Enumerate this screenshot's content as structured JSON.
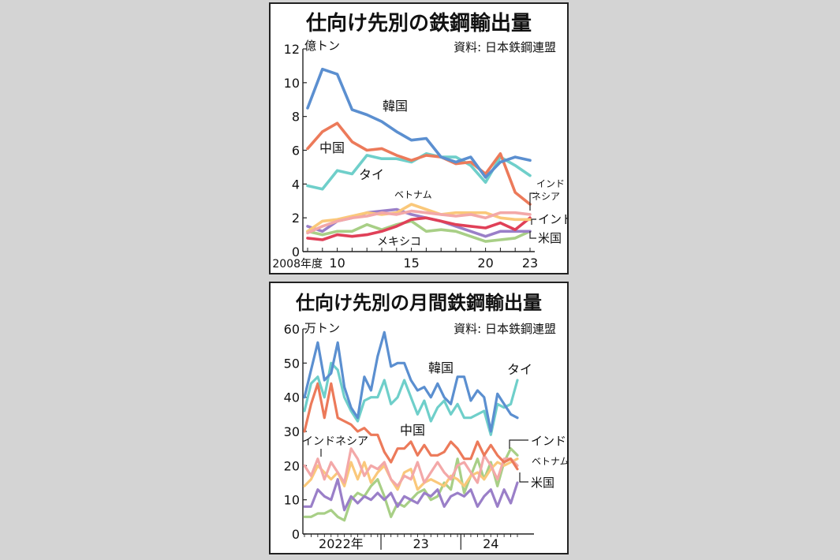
{
  "chart_data": [
    {
      "type": "line",
      "title": "仕向け先別の鉄鋼輸出量",
      "source": "資料: 日本鉄鋼連盟",
      "unit": "億トン",
      "ylim": [
        0,
        12
      ],
      "y_ticks": [
        "0",
        "2",
        "4",
        "6",
        "8",
        "10",
        "12"
      ],
      "x_ticks": [
        "2008年度",
        "10",
        "15",
        "20",
        "23"
      ],
      "x": [
        2008,
        2009,
        2010,
        2011,
        2012,
        2013,
        2014,
        2015,
        2016,
        2017,
        2018,
        2019,
        2020,
        2021,
        2022,
        2023
      ],
      "series": [
        {
          "name": "韓国",
          "color": "#5b8fd0",
          "values": [
            8.5,
            10.8,
            10.5,
            8.4,
            8.1,
            7.7,
            7.1,
            6.6,
            6.7,
            5.6,
            5.3,
            5.6,
            4.4,
            5.3,
            5.6,
            5.4
          ]
        },
        {
          "name": "中国",
          "color": "#ec7a5a",
          "values": [
            6.1,
            7.1,
            7.6,
            6.5,
            6.0,
            6.1,
            5.7,
            5.4,
            5.7,
            5.6,
            5.2,
            5.3,
            4.6,
            5.8,
            3.5,
            2.8
          ]
        },
        {
          "name": "タイ",
          "color": "#6fcfca",
          "values": [
            3.9,
            3.7,
            4.8,
            4.6,
            5.7,
            5.5,
            5.5,
            5.3,
            5.8,
            5.6,
            5.6,
            5.1,
            4.1,
            5.6,
            5.1,
            4.5
          ]
        },
        {
          "name": "インドネシア",
          "color": "#f3a8a8",
          "values": [
            1.1,
            1.5,
            1.8,
            2.0,
            2.1,
            2.3,
            2.2,
            2.4,
            2.3,
            2.2,
            2.1,
            2.2,
            2.0,
            2.3,
            2.3,
            2.2
          ]
        },
        {
          "name": "ベトナム",
          "color": "#fac87a",
          "values": [
            1.2,
            1.8,
            1.9,
            2.1,
            2.3,
            2.2,
            2.3,
            2.8,
            2.5,
            2.2,
            2.3,
            2.3,
            2.3,
            2.0,
            1.9,
            1.9
          ]
        },
        {
          "name": "インド",
          "color": "#e04058",
          "values": [
            0.8,
            0.7,
            1.0,
            0.9,
            1.0,
            1.2,
            1.5,
            1.9,
            2.0,
            1.8,
            1.6,
            1.5,
            1.4,
            1.7,
            1.3,
            2.0
          ]
        },
        {
          "name": "米国",
          "color": "#9a7fc8",
          "values": [
            1.5,
            1.2,
            1.8,
            2.0,
            2.3,
            2.4,
            2.5,
            2.2,
            2.0,
            1.8,
            1.5,
            1.2,
            0.9,
            1.2,
            1.2,
            1.2
          ]
        },
        {
          "name": "メキシコ",
          "color": "#a8cf86",
          "values": [
            1.2,
            1.0,
            1.2,
            1.2,
            1.6,
            1.3,
            1.6,
            1.8,
            1.2,
            1.3,
            1.2,
            0.9,
            0.6,
            0.7,
            0.8,
            1.2
          ]
        }
      ],
      "labels": {
        "korea": "韓国",
        "china": "中国",
        "thai": "タイ",
        "vietnam": "ベトナム",
        "mexico": "メキシコ",
        "indonesia_1": "インド",
        "indonesia_2": "ネシア",
        "india": "インド",
        "us": "米国"
      },
      "legend": "direct labels",
      "grid": false
    },
    {
      "type": "line",
      "title": "仕向け先別の月間鉄鋼輸出量",
      "source": "資料: 日本鉄鋼連盟",
      "unit": "万トン",
      "ylim": [
        0,
        60
      ],
      "y_ticks": [
        "0",
        "10",
        "20",
        "30",
        "40",
        "50",
        "60"
      ],
      "x_ticks": [
        "2022年",
        "23",
        "24"
      ],
      "x": [
        "2022-01",
        "2022-02",
        "2022-03",
        "2022-04",
        "2022-05",
        "2022-06",
        "2022-07",
        "2022-08",
        "2022-09",
        "2022-10",
        "2022-11",
        "2022-12",
        "2023-01",
        "2023-02",
        "2023-03",
        "2023-04",
        "2023-05",
        "2023-06",
        "2023-07",
        "2023-08",
        "2023-09",
        "2023-10",
        "2023-11",
        "2023-12",
        "2024-01",
        "2024-02",
        "2024-03",
        "2024-04",
        "2024-05",
        "2024-06",
        "2024-07",
        "2024-08",
        "2024-09"
      ],
      "series": [
        {
          "name": "韓国",
          "color": "#5b8fd0",
          "values": [
            40,
            48,
            56,
            45,
            47,
            56,
            43,
            37,
            34,
            46,
            42,
            52,
            59,
            49,
            50,
            50,
            45,
            42,
            43,
            40,
            44,
            40,
            38,
            46,
            46,
            39,
            42,
            40,
            30,
            41,
            38,
            35,
            34
          ]
        },
        {
          "name": "タイ",
          "color": "#6fcfca",
          "values": [
            36,
            44,
            46,
            40,
            50,
            48,
            40,
            36,
            33,
            39,
            40,
            40,
            45,
            38,
            40,
            45,
            40,
            35,
            39,
            33,
            37,
            39,
            35,
            38,
            34,
            34,
            35,
            36,
            29,
            38,
            37,
            38,
            45
          ]
        },
        {
          "name": "中国",
          "color": "#ec7a5a",
          "values": [
            30,
            38,
            44,
            34,
            44,
            34,
            33,
            32,
            30,
            31,
            29,
            29,
            24,
            21,
            25,
            25,
            27,
            23,
            26,
            23,
            23,
            24,
            27,
            25,
            22,
            22,
            27,
            23,
            26,
            23,
            21,
            22,
            19
          ]
        },
        {
          "name": "インドネシア",
          "color": "#f3a8a8",
          "values": [
            20,
            17,
            22,
            16,
            21,
            18,
            15,
            25,
            22,
            17,
            20,
            19,
            21,
            16,
            14,
            17,
            16,
            21,
            15,
            18,
            21,
            18,
            16,
            20,
            21,
            18,
            15,
            23,
            20,
            16,
            22,
            22,
            20
          ]
        },
        {
          "name": "ベトナム",
          "color": "#fac87a",
          "values": [
            14,
            16,
            20,
            18,
            16,
            18,
            14,
            21,
            16,
            21,
            15,
            18,
            20,
            16,
            13,
            18,
            19,
            13,
            15,
            16,
            15,
            14,
            17,
            16,
            14,
            17,
            18,
            16,
            19,
            21,
            20,
            21,
            22
          ]
        },
        {
          "name": "インド",
          "color": "#a8cf86",
          "values": [
            5,
            5,
            6,
            6,
            7,
            5,
            4,
            10,
            12,
            11,
            14,
            16,
            11,
            5,
            9,
            8,
            10,
            12,
            13,
            10,
            11,
            15,
            13,
            22,
            12,
            17,
            22,
            16,
            21,
            14,
            21,
            25,
            23
          ]
        },
        {
          "name": "米国",
          "color": "#9a7fc8",
          "values": [
            8,
            8,
            13,
            11,
            10,
            16,
            7,
            11,
            9,
            11,
            10,
            12,
            10,
            12,
            8,
            11,
            10,
            9,
            12,
            11,
            13,
            8,
            11,
            12,
            11,
            13,
            8,
            11,
            13,
            8,
            13,
            9,
            15
          ]
        }
      ],
      "labels": {
        "korea": "韓国",
        "thai": "タイ",
        "china": "中国",
        "indonesia": "インドネシア",
        "india": "インド",
        "vietnam": "ベトナム",
        "us": "米国"
      },
      "legend": "direct labels",
      "grid": false
    }
  ]
}
